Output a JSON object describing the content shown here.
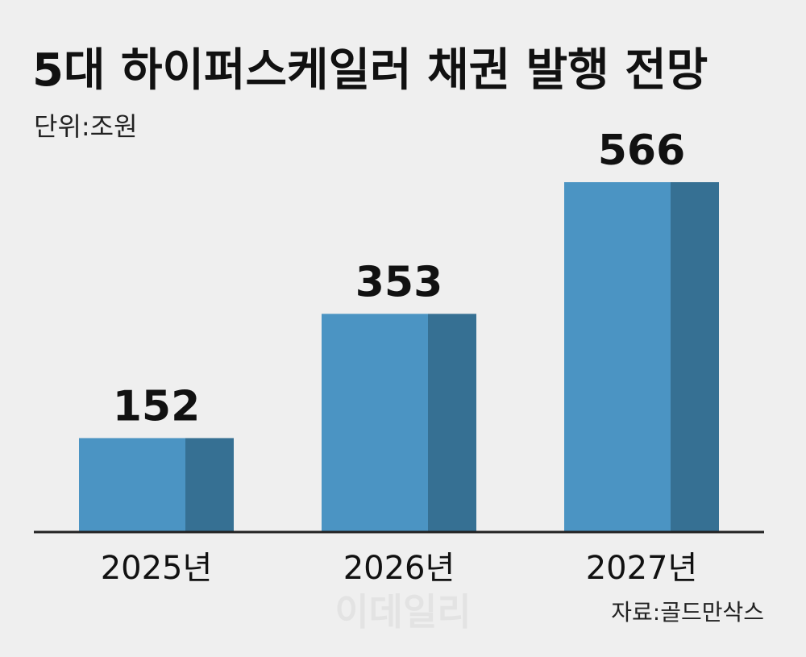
{
  "chart_data": {
    "type": "bar",
    "title": "5대 하이퍼스케일러 채권 발행 전망",
    "unit_label": "단위:조원",
    "categories": [
      "2025년",
      "2026년",
      "2027년"
    ],
    "values": [
      152,
      353,
      566
    ],
    "ylim": [
      0,
      600
    ],
    "grid": false,
    "source": "자료:골드만삭스",
    "watermark": "이데일리",
    "colors": {
      "bar_front": "#4b94c3",
      "bar_side": "#367093",
      "axis": "#222222"
    }
  }
}
